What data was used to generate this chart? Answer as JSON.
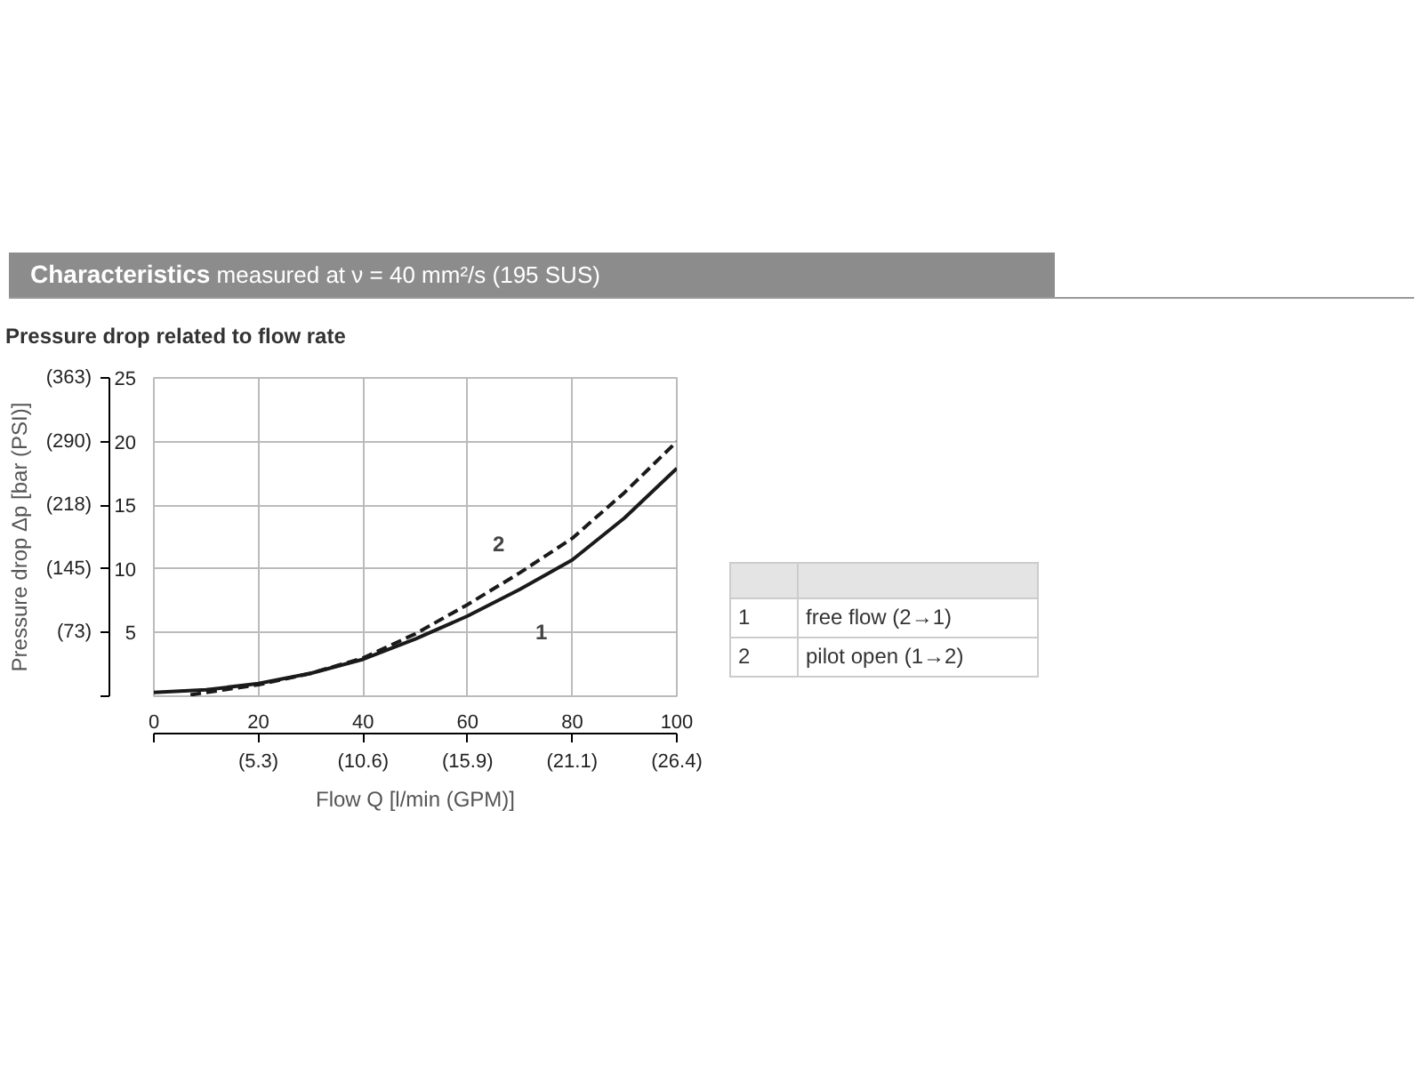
{
  "chart_data": {
    "type": "line",
    "title": "Characteristics",
    "subtitle": "measured at ν = 40 mm²/s (195 SUS)",
    "xlabel": "Flow Q [l/min (GPM)]",
    "y2label": "Pressure drop Δp [bar (PSI)]",
    "annotations": [
      "Pressure drop related to flow rate",
      "1",
      "free flow (2→1)",
      "2",
      "pilot open (1→2)"
    ],
    "x": [
      0,
      10,
      20,
      30,
      40,
      50,
      60,
      70,
      80,
      90,
      100
    ],
    "series": [
      {
        "name": "1",
        "color": "#1a1a1a",
        "line_style": "solid",
        "values": [
          0.3,
          0.5,
          1.0,
          1.8,
          2.9,
          4.5,
          6.3,
          8.4,
          10.7,
          14.0,
          17.9
        ]
      },
      {
        "name": "2",
        "color": "#1a1a1a",
        "line_style": "dashed",
        "x": [
          7,
          10,
          20,
          30,
          40,
          50,
          60,
          70,
          80,
          90,
          100
        ],
        "values": [
          0.1,
          0.3,
          0.9,
          1.8,
          3.0,
          4.9,
          7.2,
          9.7,
          12.4,
          16.0,
          20.0
        ]
      }
    ],
    "xlim": [
      0,
      100
    ],
    "xticks": [
      0,
      20,
      40,
      60,
      80,
      100
    ],
    "x2lim": [
      0,
      26.42
    ],
    "x2ticks": [
      {
        "value": 0,
        "label": null
      },
      {
        "value": 5.28,
        "label": "(5.3)"
      },
      {
        "value": 10.57,
        "label": "(10.6)"
      },
      {
        "value": 15.85,
        "label": "(15.9)"
      },
      {
        "value": 21.13,
        "label": "(21.1)"
      },
      {
        "value": 26.42,
        "label": "(26.4)"
      }
    ],
    "ylim": [
      0,
      25
    ],
    "yticks": [
      {
        "value": 0,
        "label": null
      },
      5,
      10,
      15,
      20,
      25
    ],
    "y2lim": [
      0,
      362.5
    ],
    "y2ticks": [
      {
        "value": 0,
        "label": null
      },
      {
        "value": 72.5,
        "label": "(73)"
      },
      {
        "value": 145,
        "label": "(145)"
      },
      {
        "value": 217.5,
        "label": "(218)"
      },
      {
        "value": 290,
        "label": "(290)"
      },
      {
        "value": 362.5,
        "label": "(363)"
      }
    ],
    "grid": true,
    "legend": false,
    "marker": "none"
  }
}
